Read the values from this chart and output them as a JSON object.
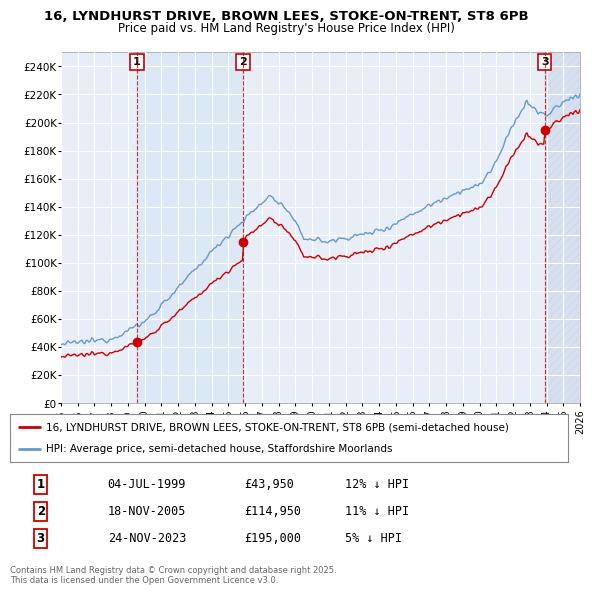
{
  "title_line1": "16, LYNDHURST DRIVE, BROWN LEES, STOKE-ON-TRENT, ST8 6PB",
  "title_line2": "Price paid vs. HM Land Registry's House Price Index (HPI)",
  "legend_line1": "16, LYNDHURST DRIVE, BROWN LEES, STOKE-ON-TRENT, ST8 6PB (semi-detached house)",
  "legend_line2": "HPI: Average price, semi-detached house, Staffordshire Moorlands",
  "footnote": "Contains HM Land Registry data © Crown copyright and database right 2025.\nThis data is licensed under the Open Government Licence v3.0.",
  "transactions": [
    {
      "num": "1",
      "date": "04-JUL-1999",
      "price": "£43,950",
      "hpi_diff": "12% ↓ HPI",
      "year": 1999.5
    },
    {
      "num": "2",
      "date": "18-NOV-2005",
      "price": "£114,950",
      "hpi_diff": "11% ↓ HPI",
      "year": 2005.88
    },
    {
      "num": "3",
      "date": "24-NOV-2023",
      "price": "£195,000",
      "hpi_diff": "5% ↓ HPI",
      "year": 2023.9
    }
  ],
  "sale_prices": [
    43950,
    114950,
    195000
  ],
  "sale_years": [
    1999.542,
    2005.879,
    2023.899
  ],
  "price_color": "#cc0000",
  "hpi_color": "#6699cc",
  "dot_color": "#cc0000",
  "background_color": "#ffffff",
  "plot_bg_color": "#e8eef8",
  "shade_color": "#dce8f5",
  "grid_color": "#ffffff",
  "vline_color": "#cc0000",
  "ylim": [
    0,
    250000
  ],
  "yticks": [
    0,
    20000,
    40000,
    60000,
    80000,
    100000,
    120000,
    140000,
    160000,
    180000,
    200000,
    220000,
    240000
  ],
  "xlim_start": 1995,
  "xlim_end": 2026,
  "xticks": [
    1995,
    1996,
    1997,
    1998,
    1999,
    2000,
    2001,
    2002,
    2003,
    2004,
    2005,
    2006,
    2007,
    2008,
    2009,
    2010,
    2011,
    2012,
    2013,
    2014,
    2015,
    2016,
    2017,
    2018,
    2019,
    2020,
    2021,
    2022,
    2023,
    2024,
    2025,
    2026
  ]
}
